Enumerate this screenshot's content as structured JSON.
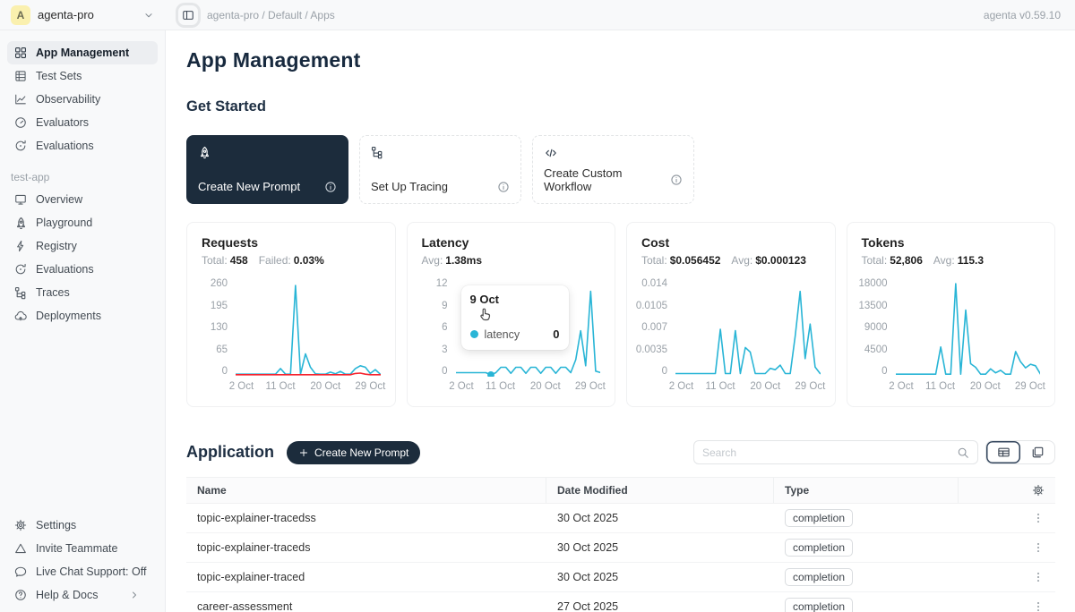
{
  "topbar": {
    "workspace_initial": "A",
    "workspace_name": "agenta-pro",
    "breadcrumb": "agenta-pro / Default / Apps",
    "version": "agenta v0.59.10"
  },
  "icons": {
    "workspace_chevron": "chevron-down",
    "sidebar_toggle": "panel-left",
    "footer_chevron": "chevron-right",
    "info": "info",
    "plus": "plus",
    "search": "search",
    "view_table": "table-view",
    "view_cards": "card-view",
    "column_settings": "gear",
    "row_menu": "dots",
    "tooltip_cursor": "hand-cursor"
  },
  "sidebar": {
    "main_items": [
      {
        "label": "App Management",
        "icon": "grid",
        "active": true
      },
      {
        "label": "Test Sets",
        "icon": "table-rows"
      },
      {
        "label": "Observability",
        "icon": "chart-line"
      },
      {
        "label": "Evaluators",
        "icon": "gauge"
      },
      {
        "label": "Evaluations",
        "icon": "refresh"
      }
    ],
    "section_label": "test-app",
    "app_items": [
      {
        "label": "Overview",
        "icon": "monitor"
      },
      {
        "label": "Playground",
        "icon": "rocket"
      },
      {
        "label": "Registry",
        "icon": "bolt"
      },
      {
        "label": "Evaluations",
        "icon": "refresh"
      },
      {
        "label": "Traces",
        "icon": "trace"
      },
      {
        "label": "Deployments",
        "icon": "cloud-up"
      }
    ],
    "footer_items": [
      {
        "label": "Settings",
        "icon": "gear"
      },
      {
        "label": "Invite Teammate",
        "icon": "triangle"
      },
      {
        "label": "Live Chat Support: Off",
        "icon": "chat"
      },
      {
        "label": "Help & Docs",
        "icon": "help"
      }
    ]
  },
  "main": {
    "title": "App Management",
    "get_started_title": "Get Started",
    "cards": [
      {
        "label": "Create New Prompt",
        "icon": "rocket",
        "variant": "dark"
      },
      {
        "label": "Set Up Tracing",
        "icon": "trace",
        "variant": "light"
      },
      {
        "label": "Create Custom Workflow",
        "icon": "code",
        "variant": "light"
      }
    ],
    "application": {
      "title": "Application",
      "create_button": "Create New Prompt",
      "search_placeholder": "Search",
      "columns": [
        "Name",
        "Date Modified",
        "Type"
      ],
      "rows": [
        {
          "name": "topic-explainer-tracedss",
          "date": "30 Oct 2025",
          "type": "completion"
        },
        {
          "name": "topic-explainer-traceds",
          "date": "30 Oct 2025",
          "type": "completion"
        },
        {
          "name": "topic-explainer-traced",
          "date": "30 Oct 2025",
          "type": "completion"
        },
        {
          "name": "career-assessment",
          "date": "27 Oct 2025",
          "type": "completion"
        }
      ]
    }
  },
  "colors": {
    "accent": "#29b5d6",
    "danger": "#f5222d",
    "dark": "#1c2c3c"
  },
  "chart_data": [
    {
      "type": "line",
      "title": "Requests",
      "stats": [
        {
          "label": "Total:",
          "value": "458"
        },
        {
          "label": "Failed:",
          "value": "0.03%"
        }
      ],
      "x_ticks": [
        "2 Oct",
        "11 Oct",
        "20 Oct",
        "29 Oct"
      ],
      "x_tick_index": [
        0,
        9,
        18,
        27
      ],
      "y_ticks": [
        "260",
        "195",
        "130",
        "65",
        "0"
      ],
      "ylim": [
        0,
        260
      ],
      "series": [
        {
          "name": "requests",
          "color": "#29b5d6",
          "values": [
            2,
            2,
            2,
            2,
            2,
            2,
            2,
            2,
            2,
            18,
            2,
            2,
            255,
            2,
            60,
            22,
            3,
            2,
            2,
            8,
            3,
            10,
            2,
            2,
            18,
            26,
            22,
            4,
            15,
            2
          ]
        },
        {
          "name": "failed",
          "color": "#f5222d",
          "values": [
            0.5,
            0.5,
            0.5,
            0.5,
            0.5,
            0.5,
            0.5,
            0.5,
            0.5,
            0.5,
            0.5,
            0.5,
            0.5,
            0.5,
            0.5,
            0.5,
            0.5,
            0.5,
            0.5,
            0.5,
            0.5,
            0.5,
            0.5,
            0.5,
            4,
            5,
            2,
            0.5,
            0.5,
            0.5
          ]
        }
      ]
    },
    {
      "type": "line",
      "title": "Latency",
      "stats": [
        {
          "label": "Avg:",
          "value": "1.38ms"
        }
      ],
      "x_ticks": [
        "2 Oct",
        "11 Oct",
        "20 Oct",
        "29 Oct"
      ],
      "x_tick_index": [
        0,
        9,
        18,
        27
      ],
      "y_ticks": [
        "12",
        "9",
        "6",
        "3",
        "0"
      ],
      "ylim": [
        0,
        12
      ],
      "series": [
        {
          "name": "latency",
          "color": "#29b5d6",
          "values": [
            0.3,
            0.3,
            0.3,
            0.3,
            0.3,
            0.3,
            0.3,
            0,
            0.3,
            1,
            1,
            0.2,
            1,
            1,
            0.2,
            1,
            1,
            0.2,
            1,
            1,
            0.2,
            1,
            1,
            0.3,
            2,
            5.8,
            1.2,
            11,
            0.5,
            0.3
          ]
        }
      ],
      "dot": {
        "index": 7,
        "value": 0
      },
      "tooltip": {
        "date": "9 Oct",
        "series_name": "latency",
        "value": "0"
      }
    },
    {
      "type": "line",
      "title": "Cost",
      "stats": [
        {
          "label": "Total:",
          "value": "$0.056452"
        },
        {
          "label": "Avg:",
          "value": "$0.000123"
        }
      ],
      "x_ticks": [
        "2 Oct",
        "11 Oct",
        "20 Oct",
        "29 Oct"
      ],
      "x_tick_index": [
        0,
        9,
        18,
        27
      ],
      "y_ticks": [
        "0.014",
        "0.0105",
        "0.007",
        "0.0035",
        "0"
      ],
      "ylim": [
        0,
        0.014
      ],
      "series": [
        {
          "name": "cost",
          "color": "#29b5d6",
          "values": [
            0.0002,
            0.0002,
            0.0002,
            0.0002,
            0.0002,
            0.0002,
            0.0002,
            0.0002,
            0.0002,
            0.007,
            0.0002,
            0.0002,
            0.0068,
            0.0002,
            0.0042,
            0.0035,
            0.0002,
            0.0002,
            0.0002,
            0.001,
            0.0008,
            0.0015,
            0.0002,
            0.0002,
            0.006,
            0.0128,
            0.0025,
            0.0078,
            0.0012,
            0.0002
          ]
        }
      ]
    },
    {
      "type": "line",
      "title": "Tokens",
      "stats": [
        {
          "label": "Total:",
          "value": "52,806"
        },
        {
          "label": "Avg:",
          "value": "115.3"
        }
      ],
      "x_ticks": [
        "2 Oct",
        "11 Oct",
        "20 Oct",
        "29 Oct"
      ],
      "x_tick_index": [
        0,
        9,
        18,
        27
      ],
      "y_ticks": [
        "18000",
        "13500",
        "9000",
        "4500",
        "0"
      ],
      "ylim": [
        0,
        18000
      ],
      "series": [
        {
          "name": "tokens",
          "color": "#29b5d6",
          "values": [
            150,
            150,
            150,
            150,
            150,
            150,
            150,
            150,
            150,
            5500,
            150,
            150,
            18000,
            150,
            12800,
            2200,
            1500,
            150,
            150,
            1200,
            400,
            900,
            150,
            150,
            4600,
            2600,
            1400,
            2100,
            1800,
            150
          ]
        }
      ]
    }
  ]
}
